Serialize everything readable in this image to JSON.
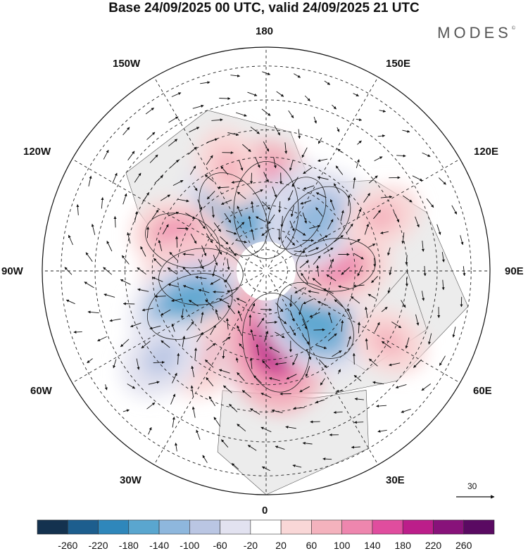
{
  "title": "Base 24/09/2025 00 UTC, valid 24/09/2025 21 UTC",
  "brand": "MODES",
  "brand_mark": "©",
  "longitude_labels": {
    "n180": "180",
    "w150": "150W",
    "e150": "150E",
    "w120": "120W",
    "e120": "120E",
    "w90": "90W",
    "e90": "90E",
    "w60": "60W",
    "e60": "60E",
    "w30": "30W",
    "e30": "30E",
    "s0": "0"
  },
  "vector_scale_label": "30",
  "colorbar": {
    "ticks": [
      "-260",
      "-220",
      "-180",
      "-140",
      "-100",
      "-60",
      "-20",
      "20",
      "60",
      "100",
      "140",
      "180",
      "220",
      "260"
    ],
    "colors": [
      "#14324f",
      "#1d5e8e",
      "#2f87bb",
      "#5aa6cf",
      "#8eb7dd",
      "#bac6e3",
      "#e2e2f0",
      "#ffffff",
      "#f9d7d7",
      "#f4b2bd",
      "#ee86ae",
      "#e04d9e",
      "#bc1e8a",
      "#88127a",
      "#5a0a62"
    ]
  },
  "field_anomalies": [
    {
      "lon": 180,
      "lat": 62,
      "value": 200
    },
    {
      "lon": 152,
      "lat": 60,
      "value": -120
    },
    {
      "lon": 210,
      "lat": 60,
      "value": -170
    },
    {
      "lon": 250,
      "lat": 50,
      "value": 120
    },
    {
      "lon": 275,
      "lat": 60,
      "value": 150
    },
    {
      "lon": 295,
      "lat": 52,
      "value": -170
    },
    {
      "lon": 325,
      "lat": 45,
      "value": 90
    },
    {
      "lon": 350,
      "lat": 55,
      "value": -90
    },
    {
      "lon": 8,
      "lat": 57,
      "value": 210
    },
    {
      "lon": 45,
      "lat": 58,
      "value": -170
    },
    {
      "lon": 95,
      "lat": 58,
      "value": 130
    },
    {
      "lon": 135,
      "lat": 58,
      "value": -140
    },
    {
      "lon": 200,
      "lat": 42,
      "value": 70
    },
    {
      "lon": 310,
      "lat": 32,
      "value": -90
    },
    {
      "lon": 60,
      "lat": 30,
      "value": 60
    },
    {
      "lon": 115,
      "lat": 35,
      "value": 60
    }
  ]
}
